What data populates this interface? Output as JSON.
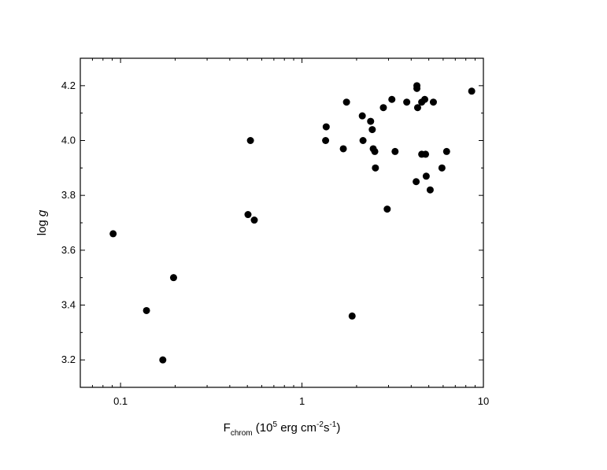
{
  "chart_data": {
    "type": "scatter",
    "x_label": [
      "F",
      "chrom",
      " (10",
      "5",
      " erg cm",
      "-2",
      "s",
      "-1",
      ")"
    ],
    "y_label": [
      "log ",
      "g"
    ],
    "x_log": true,
    "xlim": [
      0.06,
      10
    ],
    "xticks": [
      0.1,
      1,
      10
    ],
    "x_minor_ticks": [
      0.07,
      0.08,
      0.09,
      0.2,
      0.3,
      0.4,
      0.5,
      0.6,
      0.7,
      0.8,
      0.9,
      2,
      3,
      4,
      5,
      6,
      7,
      8,
      9
    ],
    "ylim": [
      3.1,
      4.3
    ],
    "yticks": [
      {
        "value": 3.2,
        "label": "3.2"
      },
      {
        "value": 3.4,
        "label": "3.4"
      },
      {
        "value": 3.6,
        "label": "3.6"
      },
      {
        "value": 3.8,
        "label": "3.8"
      },
      {
        "value": 4.0,
        "label": "4.0"
      },
      {
        "value": 4.2,
        "label": "4.2"
      }
    ],
    "y_minor_ticks": [
      3.1,
      3.3,
      3.5,
      3.7,
      3.9,
      4.1,
      4.3
    ],
    "color": "#000000",
    "series": [
      {
        "x": [
          0.091,
          0.139,
          0.171,
          0.196,
          0.504,
          0.52,
          0.546,
          1.35,
          1.36,
          1.69,
          1.76,
          1.89,
          2.15,
          2.17,
          2.39,
          2.44,
          2.47,
          2.52,
          2.54,
          2.81,
          2.95,
          3.13,
          3.26,
          3.78,
          4.26,
          4.3,
          4.3,
          4.34,
          4.57,
          4.57,
          4.75,
          4.8,
          4.84,
          5.09,
          5.3,
          5.91,
          6.27,
          8.62
        ],
        "values": [
          3.66,
          3.38,
          3.2,
          3.5,
          3.73,
          4.0,
          3.71,
          4.0,
          4.05,
          3.97,
          4.14,
          3.36,
          4.09,
          4.0,
          4.07,
          4.04,
          3.97,
          3.96,
          3.9,
          4.12,
          3.75,
          4.15,
          3.96,
          4.14,
          3.85,
          4.2,
          4.19,
          4.12,
          4.14,
          3.95,
          4.15,
          3.95,
          3.87,
          3.82,
          4.14,
          3.9,
          3.96,
          4.18
        ]
      }
    ]
  }
}
